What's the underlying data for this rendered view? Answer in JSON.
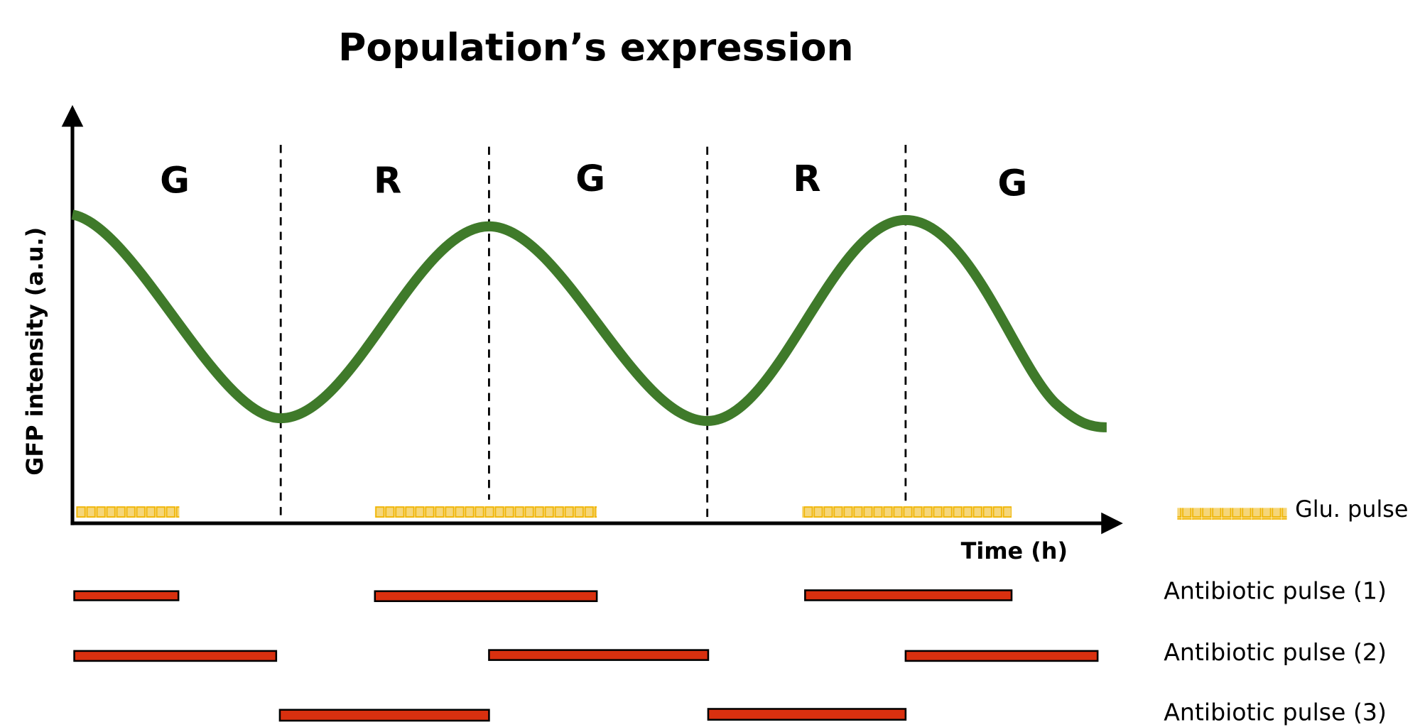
{
  "title": "Population’s expression",
  "y_axis_label": "GFP intensity (a.u.)",
  "x_axis_label": "Time (h)",
  "phases": [
    "G",
    "R",
    "G",
    "R",
    "G"
  ],
  "legend": {
    "glucose": "Glu. pulse",
    "antibiotic": [
      "Antibiotic pulse (1)",
      "Antibiotic pulse (2)",
      "Antibiotic pulse (3)"
    ]
  }
}
